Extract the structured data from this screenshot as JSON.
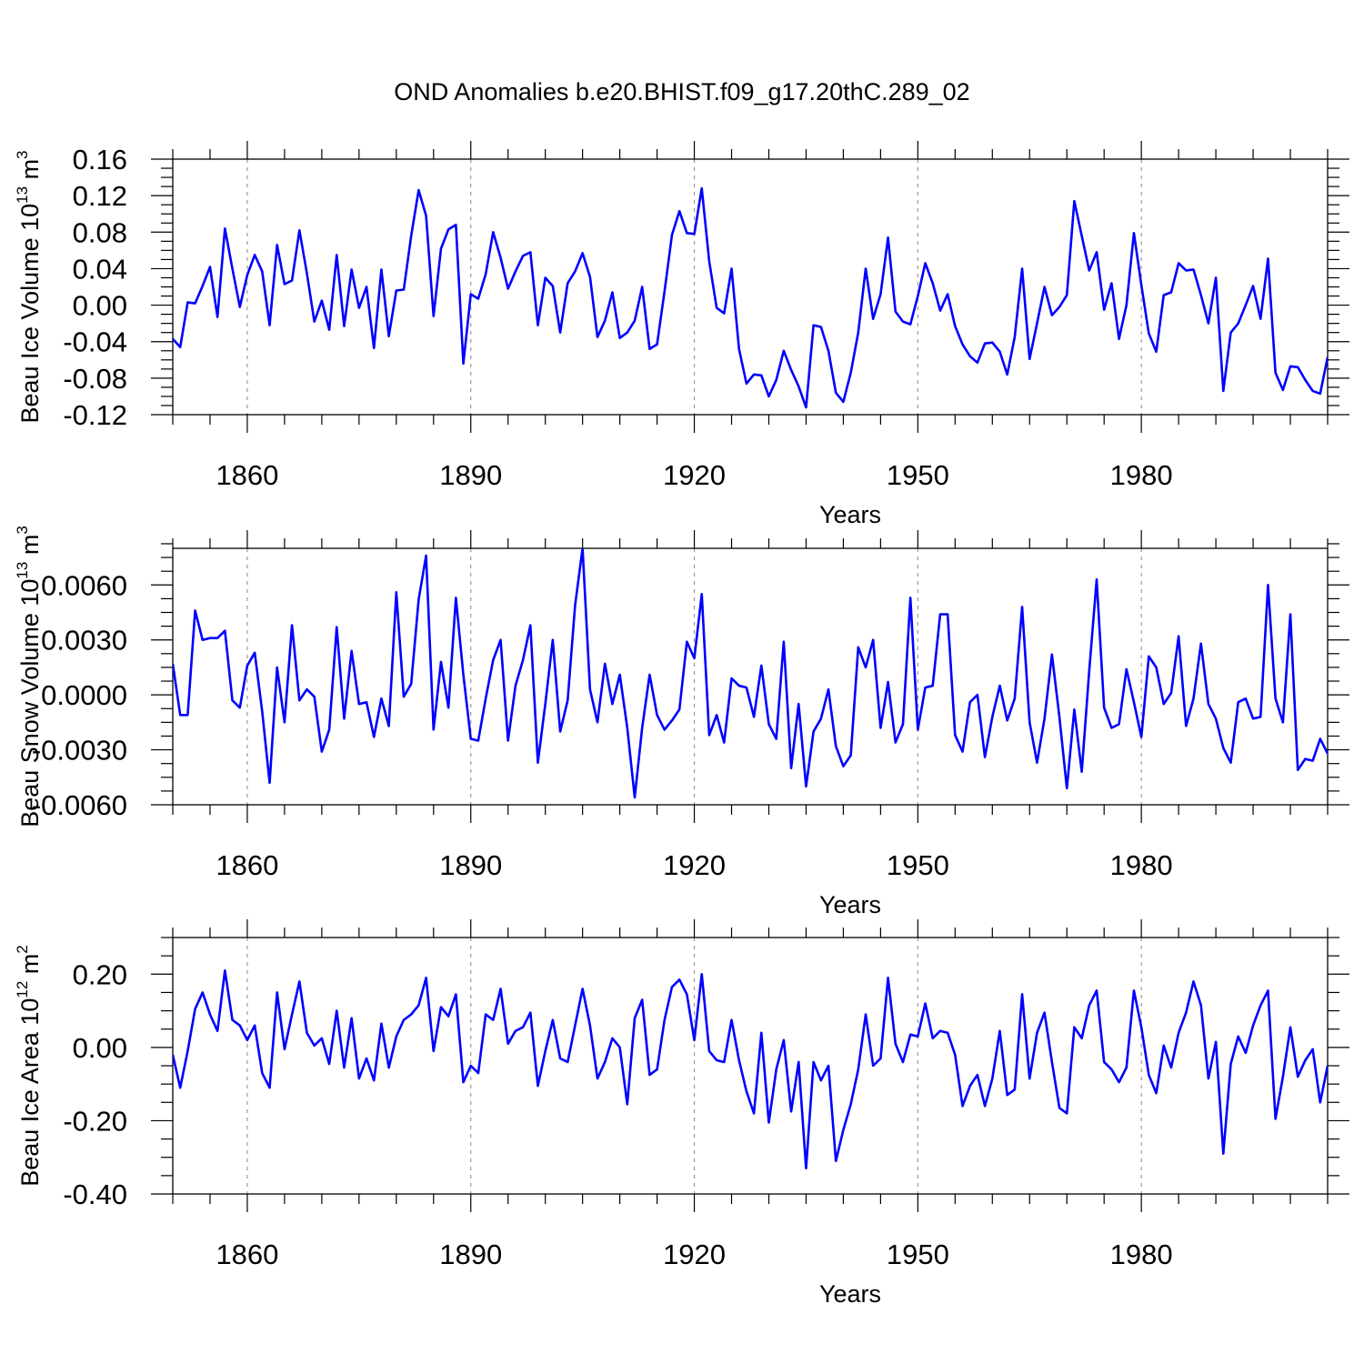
{
  "figure": {
    "title": "OND Anomalies b.e20.BHIST.f09_g17.20thC.289_02",
    "line_color": "#0000ff",
    "gridline_color": "#999999"
  },
  "chart_data": [
    {
      "type": "line",
      "title": "OND Anomalies b.e20.BHIST.f09_g17.20thC.289_02",
      "xlabel": "Years",
      "ylabel": "Beau Ice Volume 10",
      "ylabel_exponent": "13",
      "ylabel_unit": " m",
      "ylabel_unit_exponent": "3",
      "xlim": [
        1850,
        2005
      ],
      "ylim": [
        -0.12,
        0.16
      ],
      "x_start": 1850,
      "x_ticks": [
        1860,
        1890,
        1920,
        1950,
        1980
      ],
      "x_tick_labels": [
        "1860",
        "1890",
        "1920",
        "1950",
        "1980"
      ],
      "y_ticks": [
        -0.12,
        -0.08,
        -0.04,
        0.0,
        0.04,
        0.08,
        0.12,
        0.16
      ],
      "y_tick_labels": [
        "-0.12",
        "-0.08",
        "-0.04",
        "0.00",
        "0.04",
        "0.08",
        "0.12",
        "0.16"
      ],
      "grid": "vertical dashed at major x ticks",
      "series": [
        {
          "name": "Beau Ice Volume",
          "values": [
            -0.037,
            -0.046,
            0.003,
            0.002,
            0.021,
            0.042,
            -0.013,
            0.084,
            0.04,
            -0.002,
            0.033,
            0.055,
            0.037,
            -0.022,
            0.066,
            0.023,
            0.027,
            0.082,
            0.035,
            -0.018,
            0.005,
            -0.027,
            0.055,
            -0.023,
            0.039,
            -0.003,
            0.02,
            -0.047,
            0.039,
            -0.034,
            0.016,
            0.017,
            0.076,
            0.126,
            0.098,
            -0.012,
            0.062,
            0.083,
            0.088,
            -0.064,
            0.012,
            0.007,
            0.034,
            0.08,
            0.052,
            0.018,
            0.037,
            0.054,
            0.058,
            -0.022,
            0.03,
            0.021,
            -0.03,
            0.024,
            0.037,
            0.057,
            0.031,
            -0.035,
            -0.017,
            0.014,
            -0.036,
            -0.03,
            -0.017,
            0.02,
            -0.048,
            -0.043,
            0.015,
            0.077,
            0.103,
            0.079,
            0.078,
            0.128,
            0.048,
            -0.003,
            -0.009,
            0.04,
            -0.048,
            -0.086,
            -0.076,
            -0.077,
            -0.1,
            -0.082,
            -0.05,
            -0.071,
            -0.089,
            -0.112,
            -0.022,
            -0.024,
            -0.05,
            -0.096,
            -0.106,
            -0.074,
            -0.03,
            0.04,
            -0.015,
            0.012,
            0.074,
            -0.007,
            -0.018,
            -0.021,
            0.01,
            0.046,
            0.024,
            -0.006,
            0.012,
            -0.023,
            -0.043,
            -0.056,
            -0.063,
            -0.042,
            -0.041,
            -0.051,
            -0.076,
            -0.035,
            0.04,
            -0.059,
            -0.02,
            0.02,
            -0.011,
            -0.002,
            0.011,
            0.114,
            0.076,
            0.038,
            0.058,
            -0.005,
            0.024,
            -0.037,
            0.0,
            0.079,
            0.022,
            -0.031,
            -0.051,
            0.011,
            0.014,
            0.046,
            0.038,
            0.039,
            0.011,
            -0.02,
            0.03,
            -0.094,
            -0.03,
            -0.02,
            0.0,
            0.021,
            -0.015,
            0.051,
            -0.074,
            -0.093,
            -0.067,
            -0.068,
            -0.082,
            -0.094,
            -0.097,
            -0.057
          ]
        }
      ]
    },
    {
      "type": "line",
      "xlabel": "Years",
      "ylabel": "Beau Snow Volume 10",
      "ylabel_exponent": "13",
      "ylabel_unit": " m",
      "ylabel_unit_exponent": "3",
      "xlim": [
        1850,
        2005
      ],
      "ylim": [
        -0.006,
        0.008
      ],
      "x_start": 1850,
      "x_ticks": [
        1860,
        1890,
        1920,
        1950,
        1980
      ],
      "x_tick_labels": [
        "1860",
        "1890",
        "1920",
        "1950",
        "1980"
      ],
      "y_ticks": [
        -0.006,
        -0.003,
        0.0,
        0.003,
        0.006
      ],
      "y_tick_labels": [
        "-0.0060",
        "-0.0030",
        "0.0000",
        "0.0030",
        "0.0060"
      ],
      "grid": "vertical dashed at major x ticks",
      "series": [
        {
          "name": "Beau Snow Volume",
          "values": [
            0.0017,
            -0.0011,
            -0.0011,
            0.0046,
            0.003,
            0.0031,
            0.0031,
            0.0035,
            -0.0003,
            -0.0007,
            0.0016,
            0.0023,
            -0.0009,
            -0.0048,
            0.0015,
            -0.0015,
            0.0038,
            -0.0003,
            0.0003,
            -0.0001,
            -0.0031,
            -0.0019,
            0.0037,
            -0.0013,
            0.0024,
            -0.0005,
            -0.0004,
            -0.0023,
            -0.0002,
            -0.0017,
            0.0056,
            -0.0001,
            0.0006,
            0.0052,
            0.0076,
            -0.0019,
            0.0018,
            -0.0007,
            0.0053,
            0.0011,
            -0.0024,
            -0.0025,
            -0.0002,
            0.0019,
            0.003,
            -0.0025,
            0.0005,
            0.0019,
            0.0038,
            -0.0037,
            -0.0005,
            0.003,
            -0.002,
            -0.0003,
            0.0049,
            0.008,
            0.0003,
            -0.0015,
            0.0017,
            -0.0005,
            0.0011,
            -0.0018,
            -0.0056,
            -0.0018,
            0.0011,
            -0.0011,
            -0.0019,
            -0.0014,
            -0.0008,
            0.0029,
            0.002,
            0.0055,
            -0.0022,
            -0.0011,
            -0.0026,
            0.0009,
            0.0005,
            0.0004,
            -0.0012,
            0.0016,
            -0.0016,
            -0.0024,
            0.0029,
            -0.004,
            -0.0005,
            -0.005,
            -0.002,
            -0.0013,
            0.0003,
            -0.0028,
            -0.0039,
            -0.0033,
            0.0026,
            0.0015,
            0.003,
            -0.0018,
            0.0007,
            -0.0026,
            -0.0016,
            0.0053,
            -0.0019,
            0.0004,
            0.0005,
            0.0044,
            0.0044,
            -0.0022,
            -0.0031,
            -0.0004,
            0.0,
            -0.0034,
            -0.0012,
            0.0005,
            -0.0014,
            -0.0002,
            0.0048,
            -0.0015,
            -0.0037,
            -0.0013,
            0.0022,
            -0.0012,
            -0.0051,
            -0.0008,
            -0.0042,
            0.0013,
            0.0063,
            -0.0007,
            -0.0018,
            -0.0016,
            0.0014,
            -0.0004,
            -0.0023,
            0.0021,
            0.0015,
            -0.0005,
            0.0001,
            0.0032,
            -0.0017,
            -0.0002,
            0.0028,
            -0.0005,
            -0.0013,
            -0.0029,
            -0.0037,
            -0.0004,
            -0.0002,
            -0.0013,
            -0.0012,
            0.006,
            -0.0002,
            -0.0015,
            0.0044,
            -0.0041,
            -0.0035,
            -0.0036,
            -0.0024,
            -0.0032
          ]
        }
      ]
    },
    {
      "type": "line",
      "xlabel": "Years",
      "ylabel": "Beau Ice Area 10",
      "ylabel_exponent": "12",
      "ylabel_unit": " m",
      "ylabel_unit_exponent": "2",
      "xlim": [
        1850,
        2005
      ],
      "ylim": [
        -0.4,
        0.3
      ],
      "x_start": 1850,
      "x_ticks": [
        1860,
        1890,
        1920,
        1950,
        1980
      ],
      "x_tick_labels": [
        "1860",
        "1890",
        "1920",
        "1950",
        "1980"
      ],
      "y_ticks": [
        -0.4,
        -0.2,
        0.0,
        0.2
      ],
      "y_tick_labels": [
        "-0.40",
        "-0.20",
        "0.00",
        "0.20"
      ],
      "grid": "vertical dashed at major x ticks",
      "series": [
        {
          "name": "Beau Ice Area",
          "values": [
            -0.02,
            -0.11,
            -0.01,
            0.105,
            0.15,
            0.09,
            0.045,
            0.21,
            0.075,
            0.06,
            0.02,
            0.06,
            -0.07,
            -0.11,
            0.15,
            -0.005,
            0.09,
            0.18,
            0.04,
            0.005,
            0.025,
            -0.045,
            0.1,
            -0.055,
            0.08,
            -0.085,
            -0.03,
            -0.09,
            0.065,
            -0.055,
            0.03,
            0.075,
            0.09,
            0.115,
            0.19,
            -0.01,
            0.11,
            0.085,
            0.145,
            -0.095,
            -0.05,
            -0.07,
            0.09,
            0.075,
            0.16,
            0.01,
            0.045,
            0.055,
            0.095,
            -0.105,
            -0.01,
            0.075,
            -0.03,
            -0.04,
            0.06,
            0.16,
            0.06,
            -0.085,
            -0.04,
            0.025,
            0.0,
            -0.155,
            0.08,
            0.13,
            -0.075,
            -0.06,
            0.075,
            0.165,
            0.185,
            0.145,
            0.02,
            0.2,
            -0.01,
            -0.035,
            -0.04,
            0.075,
            -0.035,
            -0.12,
            -0.18,
            0.04,
            -0.205,
            -0.06,
            0.02,
            -0.175,
            -0.04,
            -0.33,
            -0.04,
            -0.09,
            -0.05,
            -0.31,
            -0.225,
            -0.155,
            -0.06,
            0.09,
            -0.05,
            -0.03,
            0.19,
            0.01,
            -0.04,
            0.035,
            0.03,
            0.12,
            0.025,
            0.045,
            0.04,
            -0.02,
            -0.16,
            -0.105,
            -0.075,
            -0.16,
            -0.085,
            0.045,
            -0.13,
            -0.115,
            0.145,
            -0.085,
            0.04,
            0.095,
            -0.04,
            -0.165,
            -0.18,
            0.055,
            0.025,
            0.115,
            0.155,
            -0.04,
            -0.06,
            -0.095,
            -0.055,
            0.155,
            0.055,
            -0.075,
            -0.125,
            0.005,
            -0.055,
            0.04,
            0.095,
            0.18,
            0.115,
            -0.085,
            0.015,
            -0.29,
            -0.045,
            0.03,
            -0.015,
            0.06,
            0.115,
            0.155,
            -0.195,
            -0.08,
            0.055,
            -0.08,
            -0.035,
            -0.005,
            -0.15,
            -0.05
          ]
        }
      ]
    }
  ]
}
